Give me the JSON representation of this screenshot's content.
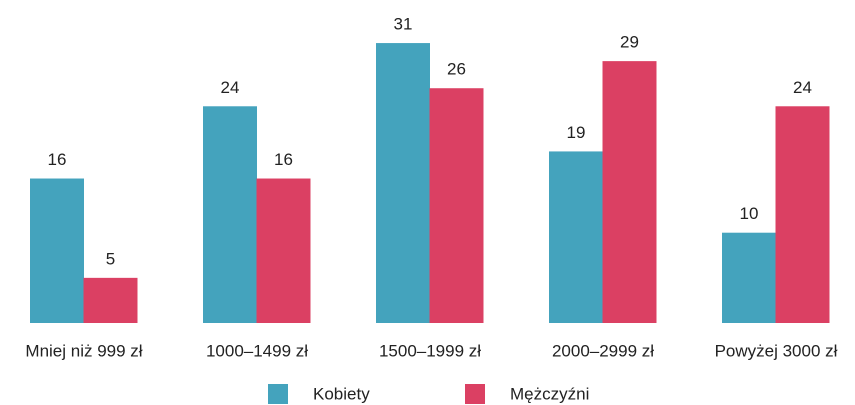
{
  "chart_data": {
    "type": "bar",
    "categories": [
      "Mniej niż 999 zł",
      "1000–1499 zł",
      "1500–1999 zł",
      "2000–2999 zł",
      "Powyżej 3000 zł"
    ],
    "series": [
      {
        "name": "Kobiety",
        "color": "#44a3bd",
        "values": [
          16,
          24,
          31,
          19,
          10
        ]
      },
      {
        "name": "Mężczyźni",
        "color": "#db4063",
        "values": [
          5,
          16,
          26,
          29,
          24
        ]
      }
    ],
    "legend": "bottom"
  }
}
